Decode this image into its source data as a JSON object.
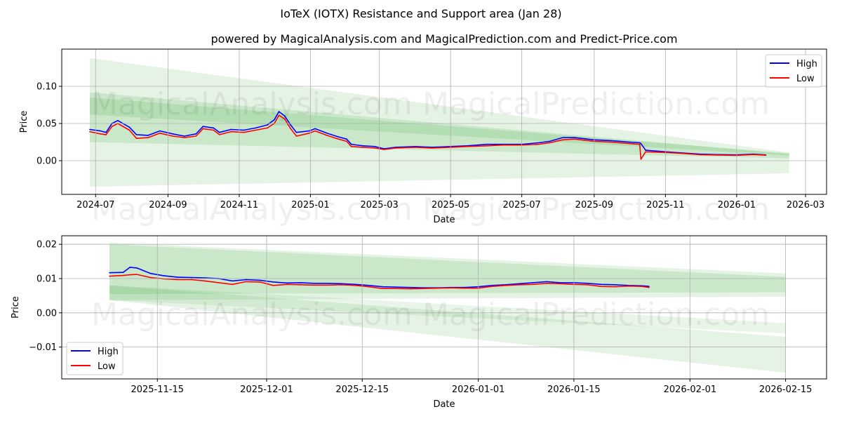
{
  "title": "IoTeX (IOTX) Resistance and Support area (Jan 28)",
  "subtitle": "powered by MagicalAnalysis.com and MagicalPrediction.com and Predict-Price.com",
  "watermarks": [
    "MagicalAnalysis.com",
    "MagicalPrediction.com"
  ],
  "colors": {
    "high": "#0000ff",
    "low": "#ff0000",
    "band": "#2ca02c"
  },
  "chart_data": [
    {
      "type": "line",
      "xlabel": "Date",
      "ylabel": "Price",
      "ylim": [
        -0.0453,
        0.15
      ],
      "xlim": [
        "2024-06-02",
        "2026-03-19"
      ],
      "yticks": [
        0.0,
        0.05,
        0.1
      ],
      "ytick_labels": [
        "0.00",
        "0.05",
        "0.10"
      ],
      "xticks": [
        "2024-07-01",
        "2024-09-01",
        "2024-11-01",
        "2025-01-01",
        "2025-03-01",
        "2025-05-01",
        "2025-07-01",
        "2025-09-01",
        "2025-11-01",
        "2026-01-01",
        "2026-03-01"
      ],
      "xtick_labels": [
        "2024-07",
        "2024-09",
        "2024-11",
        "2025-01",
        "2025-03",
        "2025-05",
        "2025-07",
        "2025-09",
        "2025-11",
        "2026-01",
        "2026-03"
      ],
      "grid": true,
      "legend": {
        "placement": "top-right",
        "entries": [
          "High",
          "Low"
        ]
      },
      "bands": [
        {
          "x": [
            "2024-06-26",
            "2026-02-15"
          ],
          "upper": [
            0.138,
            0.011
          ],
          "lower": [
            -0.035,
            -0.017
          ],
          "opacity": 0.12
        },
        {
          "x": [
            "2024-06-26",
            "2026-02-15"
          ],
          "upper": [
            0.092,
            0.009
          ],
          "lower": [
            0.025,
            0.003
          ],
          "opacity": 0.14
        },
        {
          "x": [
            "2024-06-26",
            "2026-02-15"
          ],
          "upper": [
            0.085,
            0.01
          ],
          "lower": [
            0.062,
            0.007
          ],
          "opacity": 0.14
        }
      ],
      "x": [
        "2024-06-26",
        "2024-07-05",
        "2024-07-10",
        "2024-07-15",
        "2024-07-20",
        "2024-07-30",
        "2024-08-05",
        "2024-08-15",
        "2024-08-25",
        "2024-09-05",
        "2024-09-15",
        "2024-09-25",
        "2024-10-01",
        "2024-10-10",
        "2024-10-15",
        "2024-10-25",
        "2024-11-05",
        "2024-11-15",
        "2024-11-25",
        "2024-12-01",
        "2024-12-05",
        "2024-12-10",
        "2024-12-15",
        "2024-12-20",
        "2024-12-31",
        "2025-01-05",
        "2025-01-15",
        "2025-01-25",
        "2025-02-01",
        "2025-02-05",
        "2025-02-15",
        "2025-02-25",
        "2025-03-05",
        "2025-03-15",
        "2025-04-01",
        "2025-04-15",
        "2025-05-01",
        "2025-05-15",
        "2025-06-01",
        "2025-06-15",
        "2025-07-01",
        "2025-07-15",
        "2025-07-25",
        "2025-08-05",
        "2025-08-15",
        "2025-09-01",
        "2025-09-15",
        "2025-10-01",
        "2025-10-10",
        "2025-10-11",
        "2025-10-15",
        "2025-11-01",
        "2025-11-15",
        "2025-12-01",
        "2025-12-15",
        "2026-01-01",
        "2026-01-15",
        "2026-01-26"
      ],
      "series": [
        {
          "name": "High",
          "values": [
            0.042,
            0.04,
            0.038,
            0.05,
            0.054,
            0.045,
            0.035,
            0.034,
            0.04,
            0.036,
            0.033,
            0.036,
            0.046,
            0.044,
            0.038,
            0.042,
            0.041,
            0.044,
            0.048,
            0.055,
            0.066,
            0.06,
            0.048,
            0.038,
            0.04,
            0.043,
            0.037,
            0.032,
            0.029,
            0.022,
            0.02,
            0.019,
            0.016,
            0.018,
            0.019,
            0.018,
            0.019,
            0.02,
            0.022,
            0.022,
            0.022,
            0.024,
            0.026,
            0.031,
            0.031,
            0.028,
            0.027,
            0.025,
            0.024,
            0.023,
            0.014,
            0.012,
            0.0105,
            0.0088,
            0.0082,
            0.0078,
            0.0088,
            0.0077
          ]
        },
        {
          "name": "Low",
          "values": [
            0.039,
            0.036,
            0.035,
            0.046,
            0.05,
            0.041,
            0.03,
            0.031,
            0.037,
            0.033,
            0.031,
            0.033,
            0.043,
            0.041,
            0.035,
            0.039,
            0.038,
            0.041,
            0.044,
            0.05,
            0.061,
            0.056,
            0.043,
            0.033,
            0.037,
            0.04,
            0.034,
            0.029,
            0.026,
            0.019,
            0.018,
            0.017,
            0.015,
            0.017,
            0.018,
            0.017,
            0.018,
            0.019,
            0.02,
            0.021,
            0.021,
            0.022,
            0.024,
            0.028,
            0.029,
            0.026,
            0.025,
            0.023,
            0.022,
            0.002,
            0.012,
            0.011,
            0.0098,
            0.008,
            0.0076,
            0.0072,
            0.0083,
            0.0073
          ]
        }
      ]
    },
    {
      "type": "line",
      "xlabel": "Date",
      "ylabel": "Price",
      "ylim": [
        -0.0193,
        0.0225
      ],
      "xlim": [
        "2025-11-01",
        "2026-02-21"
      ],
      "yticks": [
        -0.01,
        0.0,
        0.01,
        0.02
      ],
      "ytick_labels": [
        "−0.01",
        "0.00",
        "0.01",
        "0.02"
      ],
      "xticks": [
        "2025-11-15",
        "2025-12-01",
        "2025-12-15",
        "2026-01-01",
        "2026-01-15",
        "2026-02-01",
        "2026-02-15"
      ],
      "xtick_labels": [
        "2025-11-15",
        "2025-12-01",
        "2025-12-15",
        "2026-01-01",
        "2026-01-15",
        "2026-02-01",
        "2026-02-15"
      ],
      "grid": true,
      "legend": {
        "placement": "bottom-left",
        "entries": [
          "High",
          "Low"
        ]
      },
      "bands": [
        {
          "x": [
            "2025-11-08",
            "2026-02-15"
          ],
          "upper": [
            0.0205,
            0.0115
          ],
          "lower": [
            0.0037,
            0.0047
          ],
          "opacity": 0.12
        },
        {
          "x": [
            "2025-11-08",
            "2026-02-15"
          ],
          "upper": [
            0.02,
            0.0105
          ],
          "lower": [
            0.0055,
            0.006
          ],
          "opacity": 0.14
        },
        {
          "x": [
            "2025-11-08",
            "2026-02-15"
          ],
          "upper": [
            0.008,
            -0.007
          ],
          "lower": [
            0.0037,
            -0.0175
          ],
          "opacity": 0.12
        },
        {
          "x": [
            "2025-11-08",
            "2026-02-15"
          ],
          "upper": [
            0.008,
            -0.003
          ],
          "lower": [
            0.0037,
            -0.006
          ],
          "opacity": 0.1
        }
      ],
      "x": [
        "2025-11-08",
        "2025-11-10",
        "2025-11-11",
        "2025-11-12",
        "2025-11-14",
        "2025-11-16",
        "2025-11-18",
        "2025-11-20",
        "2025-11-22",
        "2025-11-24",
        "2025-11-26",
        "2025-11-28",
        "2025-11-30",
        "2025-12-02",
        "2025-12-04",
        "2025-12-06",
        "2025-12-08",
        "2025-12-10",
        "2025-12-12",
        "2025-12-14",
        "2025-12-16",
        "2025-12-18",
        "2025-12-20",
        "2025-12-22",
        "2025-12-24",
        "2025-12-26",
        "2025-12-28",
        "2025-12-30",
        "2026-01-01",
        "2026-01-03",
        "2026-01-05",
        "2026-01-07",
        "2026-01-09",
        "2026-01-11",
        "2026-01-13",
        "2026-01-15",
        "2026-01-17",
        "2026-01-19",
        "2026-01-21",
        "2026-01-23",
        "2026-01-25",
        "2026-01-26"
      ],
      "series": [
        {
          "name": "High",
          "values": [
            0.0117,
            0.0118,
            0.0133,
            0.0131,
            0.0115,
            0.0108,
            0.0104,
            0.0103,
            0.0102,
            0.01,
            0.0093,
            0.0097,
            0.0095,
            0.009,
            0.0087,
            0.0088,
            0.0086,
            0.0086,
            0.0085,
            0.0083,
            0.008,
            0.0076,
            0.0075,
            0.0074,
            0.0073,
            0.0073,
            0.0074,
            0.0074,
            0.0076,
            0.008,
            0.0082,
            0.0085,
            0.0088,
            0.0091,
            0.0088,
            0.0088,
            0.0086,
            0.0083,
            0.0082,
            0.008,
            0.0079,
            0.0077
          ]
        },
        {
          "name": "Low",
          "values": [
            0.0107,
            0.0109,
            0.0111,
            0.0112,
            0.0103,
            0.0099,
            0.0097,
            0.0097,
            0.0093,
            0.0088,
            0.0083,
            0.0091,
            0.009,
            0.008,
            0.0083,
            0.0082,
            0.0081,
            0.0081,
            0.0082,
            0.008,
            0.0076,
            0.0071,
            0.0071,
            0.007,
            0.0071,
            0.0072,
            0.0073,
            0.0072,
            0.0072,
            0.0077,
            0.008,
            0.0082,
            0.0083,
            0.0086,
            0.0085,
            0.0083,
            0.0082,
            0.0077,
            0.0076,
            0.0078,
            0.0077,
            0.0074
          ]
        }
      ]
    }
  ]
}
